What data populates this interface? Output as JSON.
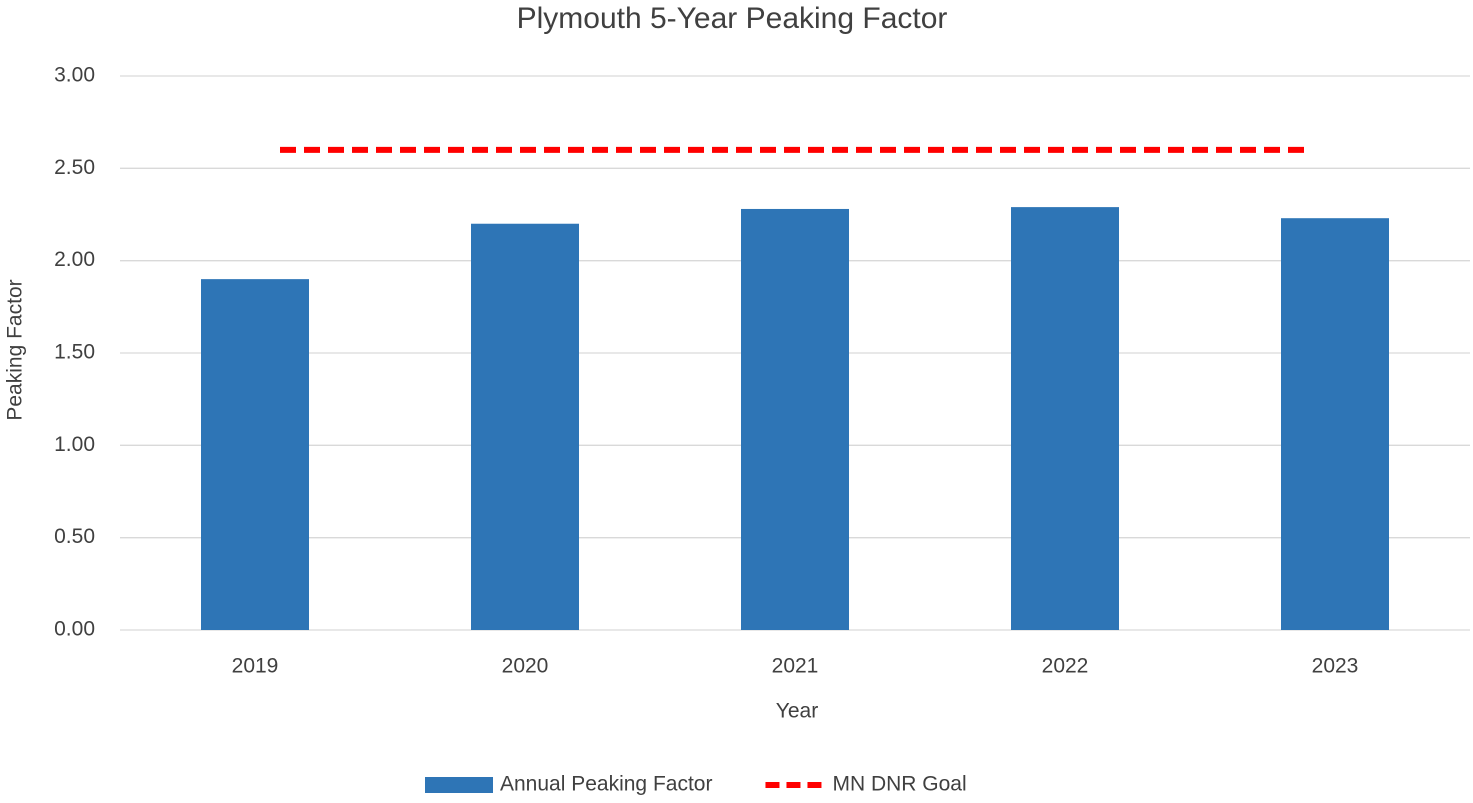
{
  "chart_data": {
    "type": "bar",
    "title": "Plymouth 5-Year Peaking Factor",
    "xlabel": "Year",
    "ylabel": "Peaking Factor",
    "categories": [
      "2019",
      "2020",
      "2021",
      "2022",
      "2023"
    ],
    "series": [
      {
        "name": "Annual Peaking Factor",
        "color": "#2e75b6",
        "type": "bar",
        "values": [
          1.9,
          2.2,
          2.28,
          2.29,
          2.23
        ]
      },
      {
        "name": "MN DNR Goal",
        "color": "#ff0000",
        "type": "line",
        "dashed": true,
        "values": [
          2.6,
          2.6,
          2.6,
          2.6,
          2.6
        ]
      }
    ],
    "ylim": [
      0,
      3
    ],
    "yticks": [
      {
        "value": 0,
        "label": "0.00"
      },
      {
        "value": 0.5,
        "label": "0.50"
      },
      {
        "value": 1,
        "label": "1.00"
      },
      {
        "value": 1.5,
        "label": "1.50"
      },
      {
        "value": 2,
        "label": "2.00"
      },
      {
        "value": 2.5,
        "label": "2.50"
      },
      {
        "value": 3,
        "label": "3.00"
      }
    ],
    "grid": true,
    "legend": "bottom"
  }
}
